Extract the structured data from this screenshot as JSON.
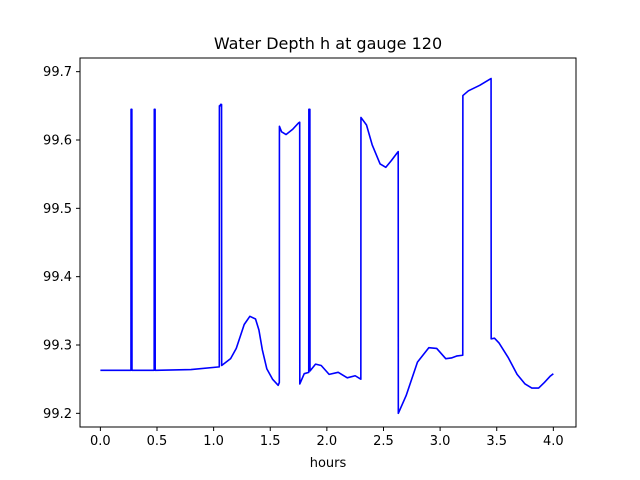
{
  "chart_data": {
    "type": "line",
    "title": "Water Depth h at gauge 120",
    "xlabel": "hours",
    "ylabel": "",
    "xlim": [
      -0.18,
      4.2
    ],
    "ylim": [
      99.18,
      99.72
    ],
    "xticks": [
      0.0,
      0.5,
      1.0,
      1.5,
      2.0,
      2.5,
      3.0,
      3.5,
      4.0
    ],
    "xtick_labels": [
      "0.0",
      "0.5",
      "1.0",
      "1.5",
      "2.0",
      "2.5",
      "3.0",
      "3.5",
      "4.0"
    ],
    "yticks": [
      99.2,
      99.3,
      99.4,
      99.5,
      99.6,
      99.7
    ],
    "ytick_labels": [
      "99.2",
      "99.3",
      "99.4",
      "99.5",
      "99.6",
      "99.7"
    ],
    "grid": false,
    "series": [
      {
        "color": "#0000ff",
        "x": [
          0.0,
          0.27,
          0.271,
          0.278,
          0.279,
          0.285,
          0.286,
          0.475,
          0.476,
          0.483,
          0.484,
          0.49,
          0.491,
          0.8,
          1.05,
          1.051,
          1.06,
          1.061,
          1.07,
          1.071,
          1.15,
          1.2,
          1.27,
          1.32,
          1.37,
          1.4,
          1.43,
          1.47,
          1.52,
          1.57,
          1.58,
          1.581,
          1.6,
          1.64,
          1.7,
          1.75,
          1.76,
          1.761,
          1.8,
          1.84,
          1.841,
          1.85,
          1.851,
          1.9,
          1.95,
          2.02,
          2.1,
          2.18,
          2.25,
          2.3,
          2.301,
          2.35,
          2.4,
          2.47,
          2.52,
          2.57,
          2.62,
          2.63,
          2.631,
          2.7,
          2.8,
          2.9,
          2.97,
          3.05,
          3.1,
          3.15,
          3.2,
          3.201,
          3.25,
          3.35,
          3.44,
          3.45,
          3.451,
          3.48,
          3.52,
          3.6,
          3.68,
          3.75,
          3.81,
          3.87,
          3.92,
          3.97,
          4.0
        ],
        "y": [
          99.263,
          99.263,
          99.645,
          99.645,
          99.263,
          99.263,
          99.263,
          99.263,
          99.645,
          99.645,
          99.263,
          99.263,
          99.263,
          99.264,
          99.268,
          99.65,
          99.65,
          99.652,
          99.652,
          99.27,
          99.28,
          99.295,
          99.33,
          99.342,
          99.338,
          99.322,
          99.293,
          99.265,
          99.25,
          99.241,
          99.245,
          99.62,
          99.612,
          99.608,
          99.616,
          99.625,
          99.626,
          99.243,
          99.258,
          99.26,
          99.645,
          99.645,
          99.262,
          99.272,
          99.27,
          99.257,
          99.26,
          99.252,
          99.255,
          99.25,
          99.633,
          99.622,
          99.593,
          99.565,
          99.56,
          99.57,
          99.581,
          99.583,
          99.2,
          99.226,
          99.275,
          99.296,
          99.295,
          99.28,
          99.281,
          99.284,
          99.285,
          99.665,
          99.672,
          99.68,
          99.689,
          99.69,
          99.309,
          99.31,
          99.303,
          99.282,
          99.257,
          99.243,
          99.237,
          99.237,
          99.245,
          99.254,
          99.258
        ]
      }
    ]
  }
}
